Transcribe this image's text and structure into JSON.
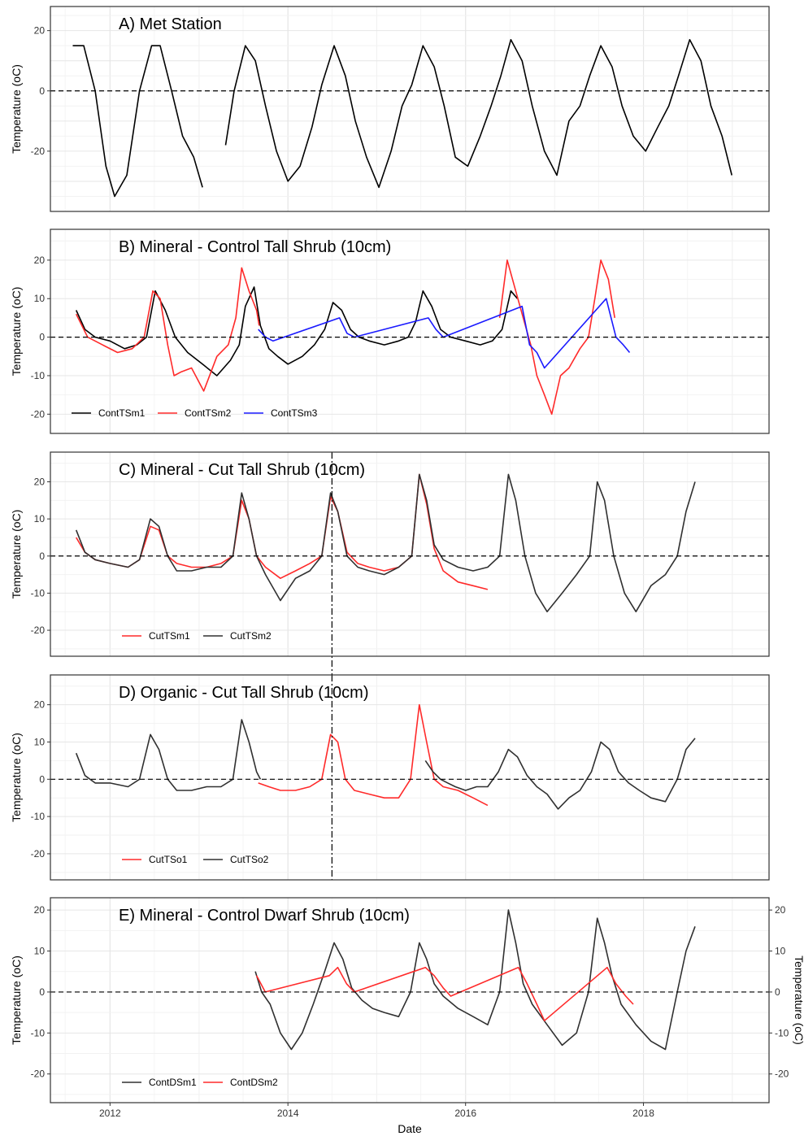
{
  "chart_data": [
    {
      "type": "line",
      "title": "A) Met Station",
      "ylabel": "Temperature (oC)",
      "ylim": [
        -40,
        28
      ],
      "yticks": [
        20,
        0,
        -20
      ],
      "xlim": [
        "2011-05-01",
        "2019-06-01"
      ],
      "reference_line": 0,
      "series": [
        {
          "name": "",
          "color": "#000000",
          "x": [
            "2011-08-01",
            "2011-09-15",
            "2011-11-01",
            "2011-12-15",
            "2012-01-20",
            "2012-03-10",
            "2012-05-01",
            "2012-06-20",
            "2012-07-25",
            "2012-09-10",
            "2012-10-25",
            "2012-12-10",
            "2013-01-15"
          ],
          "y": [
            15,
            15,
            0,
            -25,
            -35,
            -28,
            0,
            15,
            15,
            0,
            -15,
            -22,
            -32
          ]
        },
        {
          "name": "",
          "color": "#000000",
          "x": [
            "2013-04-20",
            "2013-05-25",
            "2013-07-10",
            "2013-08-20",
            "2013-10-01",
            "2013-11-15",
            "2014-01-01",
            "2014-02-20",
            "2014-04-10",
            "2014-05-20",
            "2014-07-10",
            "2014-08-25",
            "2014-10-05",
            "2014-11-20",
            "2015-01-10",
            "2015-03-01",
            "2015-04-15",
            "2015-05-25",
            "2015-07-10",
            "2015-08-25",
            "2015-10-05",
            "2015-11-20",
            "2016-01-10",
            "2016-03-01",
            "2016-04-15",
            "2016-05-25",
            "2016-07-05",
            "2016-08-20",
            "2016-10-01",
            "2016-11-20",
            "2017-01-10",
            "2017-03-01",
            "2017-04-15",
            "2017-05-25",
            "2017-07-10",
            "2017-08-25",
            "2017-10-05",
            "2017-11-20",
            "2018-01-10",
            "2018-03-01",
            "2018-04-15",
            "2018-05-25",
            "2018-07-10",
            "2018-08-25",
            "2018-10-05",
            "2018-11-20",
            "2018-12-30"
          ],
          "y": [
            -18,
            0,
            15,
            10,
            -5,
            -20,
            -30,
            -25,
            -12,
            2,
            15,
            5,
            -10,
            -22,
            -32,
            -20,
            -5,
            2,
            15,
            8,
            -5,
            -22,
            -25,
            -15,
            -5,
            5,
            17,
            10,
            -5,
            -20,
            -28,
            -10,
            -5,
            5,
            15,
            8,
            -5,
            -15,
            -20,
            -12,
            -5,
            5,
            17,
            10,
            -5,
            -15,
            -28
          ]
        }
      ]
    },
    {
      "type": "line",
      "title": "B) Mineral - Control Tall Shrub (10cm)",
      "ylabel": "Temperature (oC)",
      "ylim": [
        -25,
        28
      ],
      "yticks": [
        20,
        10,
        0,
        -10,
        -20
      ],
      "xlim": [
        "2011-05-01",
        "2019-06-01"
      ],
      "reference_line": 0,
      "legend_position": "bottom-left",
      "series": [
        {
          "name": "ContTSm1",
          "color": "#000000",
          "x": [
            "2011-08-15",
            "2011-09-20",
            "2011-11-01",
            "2012-01-01",
            "2012-03-01",
            "2012-04-20",
            "2012-05-30",
            "2012-07-05",
            "2012-08-15",
            "2012-09-25",
            "2012-11-15",
            "2013-01-15",
            "2013-03-15",
            "2013-05-10",
            "2013-06-15",
            "2013-07-10",
            "2013-08-15",
            "2013-09-10",
            "2013-10-15",
            "2013-11-20",
            "2014-01-01",
            "2014-03-01",
            "2014-04-20",
            "2014-06-01",
            "2014-07-05",
            "2014-08-10",
            "2014-09-15",
            "2014-10-20",
            "2014-12-01",
            "2015-02-01",
            "2015-04-01",
            "2015-05-10",
            "2015-06-10",
            "2015-07-10",
            "2015-08-15",
            "2015-09-20",
            "2015-11-01",
            "2016-01-01",
            "2016-03-01",
            "2016-04-20",
            "2016-05-30",
            "2016-07-05",
            "2016-08-01"
          ],
          "y": [
            7,
            2,
            0,
            -1,
            -3,
            -2,
            0,
            12,
            7,
            0,
            -4,
            -7,
            -10,
            -6,
            -2,
            8,
            13,
            3,
            -3,
            -5,
            -7,
            -5,
            -2,
            2,
            9,
            7,
            2,
            0,
            -1,
            -2,
            -1,
            0,
            4,
            12,
            8,
            2,
            0,
            -1,
            -2,
            -1,
            2,
            12,
            10
          ]
        },
        {
          "name": "ContTSm2",
          "color": "#ff2a2a",
          "x": [
            "2011-08-15",
            "2011-10-01",
            "2011-12-01",
            "2012-02-01",
            "2012-04-01",
            "2012-05-20",
            "2012-06-25",
            "2012-07-25",
            "2012-08-25",
            "2012-09-20",
            "2012-10-20",
            "2012-12-01",
            "2013-01-20",
            "2013-03-15",
            "2013-05-01",
            "2013-06-01",
            "2013-06-25",
            "2013-07-25",
            "2013-08-25",
            "2013-09-05"
          ],
          "y": [
            6,
            0,
            -2,
            -4,
            -3,
            0,
            12,
            10,
            -2,
            -10,
            -9,
            -8,
            -14,
            -5,
            -2,
            5,
            18,
            12,
            7,
            3
          ]
        },
        {
          "name": "ContTSm2",
          "color": "#ff2a2a",
          "x": [
            "2016-05-20",
            "2016-06-20",
            "2016-07-25",
            "2016-08-25",
            "2016-09-25",
            "2016-10-20",
            "2016-11-20",
            "2016-12-20",
            "2017-01-25",
            "2017-03-01",
            "2017-04-15",
            "2017-05-20",
            "2017-06-15",
            "2017-07-10",
            "2017-08-10",
            "2017-09-05"
          ],
          "y": [
            5,
            20,
            12,
            5,
            -2,
            -10,
            -15,
            -20,
            -10,
            -8,
            -3,
            0,
            10,
            20,
            15,
            5
          ]
        },
        {
          "name": "ContTSm3",
          "color": "#1a1aff",
          "x": [
            "2013-09-01",
            "2013-10-01",
            "2013-11-01",
            "2014-08-01",
            "2014-09-01",
            "2014-10-01",
            "2015-08-01",
            "2015-09-01",
            "2015-10-01",
            "2016-08-20",
            "2016-09-20",
            "2016-10-20",
            "2016-11-20",
            "2017-08-01",
            "2017-09-10",
            "2017-10-10",
            "2017-11-05"
          ],
          "y": [
            2,
            0,
            -1,
            5,
            1,
            0,
            5,
            2,
            0,
            8,
            -2,
            -4,
            -8,
            10,
            0,
            -2,
            -4
          ]
        }
      ]
    },
    {
      "type": "line",
      "title": "C) Mineral - Cut Tall Shrub (10cm)",
      "ylabel": "Temperature (oC)",
      "ylim": [
        -27,
        28
      ],
      "yticks": [
        20,
        10,
        0,
        -10,
        -20
      ],
      "xlim": [
        "2011-05-01",
        "2019-06-01"
      ],
      "reference_line": 0,
      "vline": "2014-07-01",
      "legend_position": "bottom-left",
      "series": [
        {
          "name": "CutTSm1",
          "color": "#ff2a2a",
          "x": [
            "2011-08-15",
            "2011-09-20",
            "2011-11-01",
            "2012-01-01",
            "2012-03-15",
            "2012-05-01",
            "2012-06-15",
            "2012-07-20",
            "2012-08-25",
            "2012-10-01",
            "2012-12-01",
            "2013-02-01",
            "2013-04-01",
            "2013-05-20",
            "2013-06-25",
            "2013-07-25",
            "2013-08-25",
            "2013-10-01",
            "2013-12-01",
            "2014-02-01",
            "2014-04-01",
            "2014-05-20",
            "2014-06-25",
            "2014-07-25",
            "2014-09-01",
            "2014-10-15",
            "2014-12-01",
            "2015-02-01",
            "2015-04-01",
            "2015-05-25",
            "2015-06-25",
            "2015-07-25",
            "2015-08-25",
            "2015-10-01",
            "2015-12-01",
            "2016-02-01",
            "2016-04-01"
          ],
          "y": [
            5,
            1,
            -1,
            -2,
            -3,
            -1,
            8,
            7,
            0,
            -2,
            -3,
            -3,
            -2,
            0,
            15,
            10,
            0,
            -3,
            -6,
            -4,
            -2,
            0,
            16,
            12,
            1,
            -2,
            -3,
            -4,
            -3,
            0,
            22,
            14,
            2,
            -4,
            -7,
            -8,
            -9
          ]
        },
        {
          "name": "CutTSm2",
          "color": "#303030",
          "x": [
            "2011-08-15",
            "2011-09-20",
            "2011-11-01",
            "2012-01-01",
            "2012-03-15",
            "2012-05-01",
            "2012-06-15",
            "2012-07-20",
            "2012-08-25",
            "2012-10-01",
            "2012-12-01",
            "2013-02-01",
            "2013-04-01",
            "2013-05-20",
            "2013-06-25",
            "2013-07-25",
            "2013-08-25",
            "2013-10-01",
            "2013-12-01",
            "2014-02-01",
            "2014-04-01",
            "2014-05-20",
            "2014-06-25",
            "2014-07-25",
            "2014-09-01",
            "2014-10-15",
            "2014-12-01",
            "2015-02-01",
            "2015-04-01",
            "2015-05-25",
            "2015-06-25",
            "2015-07-25",
            "2015-08-25",
            "2015-10-01",
            "2015-12-01",
            "2016-02-01",
            "2016-04-01",
            "2016-05-20",
            "2016-06-25",
            "2016-07-25",
            "2016-09-01",
            "2016-10-15",
            "2016-12-01",
            "2017-02-01",
            "2017-04-01",
            "2017-05-25",
            "2017-06-25",
            "2017-07-25",
            "2017-09-01",
            "2017-10-15",
            "2017-12-01",
            "2018-02-01",
            "2018-04-01",
            "2018-05-20",
            "2018-06-25",
            "2018-08-01"
          ],
          "y": [
            7,
            1,
            -1,
            -2,
            -3,
            -1,
            10,
            8,
            0,
            -4,
            -4,
            -3,
            -3,
            0,
            17,
            10,
            0,
            -5,
            -12,
            -6,
            -4,
            0,
            17,
            12,
            0,
            -3,
            -4,
            -5,
            -3,
            0,
            22,
            15,
            3,
            -1,
            -3,
            -4,
            -3,
            0,
            22,
            15,
            0,
            -10,
            -15,
            -10,
            -5,
            0,
            20,
            15,
            0,
            -10,
            -15,
            -8,
            -5,
            0,
            12,
            20
          ]
        }
      ]
    },
    {
      "type": "line",
      "title": "D) Organic - Cut Tall Shrub (10cm)",
      "ylabel": "Temperature (oC)",
      "ylim": [
        -27,
        28
      ],
      "yticks": [
        20,
        10,
        0,
        -10,
        -20
      ],
      "xlim": [
        "2011-05-01",
        "2019-06-01"
      ],
      "reference_line": 0,
      "vline": "2014-07-01",
      "legend_position": "bottom-left",
      "series": [
        {
          "name": "CutTSo1",
          "color": "#ff2a2a",
          "x": [
            "2013-09-01",
            "2013-10-15",
            "2013-12-01",
            "2014-02-01",
            "2014-04-01",
            "2014-05-20",
            "2014-06-25",
            "2014-07-25",
            "2014-08-25",
            "2014-10-01",
            "2014-12-01",
            "2015-02-01",
            "2015-04-01",
            "2015-05-20",
            "2015-06-25",
            "2015-07-25",
            "2015-08-25",
            "2015-10-01",
            "2015-12-01",
            "2016-02-01",
            "2016-04-01"
          ],
          "y": [
            -1,
            -2,
            -3,
            -3,
            -2,
            0,
            12,
            10,
            0,
            -3,
            -4,
            -5,
            -5,
            0,
            20,
            10,
            0,
            -2,
            -3,
            -5,
            -7
          ]
        },
        {
          "name": "CutTSo2",
          "color": "#303030",
          "x": [
            "2011-08-15",
            "2011-09-20",
            "2011-11-01",
            "2012-01-01",
            "2012-03-15",
            "2012-05-01",
            "2012-06-15",
            "2012-07-20",
            "2012-08-25",
            "2012-10-01",
            "2012-12-01",
            "2013-02-01",
            "2013-04-01",
            "2013-05-20",
            "2013-06-25",
            "2013-07-25",
            "2013-08-25",
            "2013-09-10"
          ],
          "y": [
            7,
            1,
            -1,
            -1,
            -2,
            0,
            12,
            8,
            0,
            -3,
            -3,
            -2,
            -2,
            0,
            16,
            10,
            2,
            0
          ]
        },
        {
          "name": "CutTSo2",
          "color": "#303030",
          "x": [
            "2015-07-20",
            "2015-08-20",
            "2015-09-20",
            "2015-10-20",
            "2015-11-20",
            "2016-01-01",
            "2016-02-15",
            "2016-04-01",
            "2016-05-15",
            "2016-06-25",
            "2016-08-01",
            "2016-09-10",
            "2016-10-20",
            "2016-12-01",
            "2017-01-15",
            "2017-03-01",
            "2017-04-15",
            "2017-06-01",
            "2017-07-10",
            "2017-08-15",
            "2017-09-20",
            "2017-11-01",
            "2017-12-15",
            "2018-02-01",
            "2018-04-01",
            "2018-05-20",
            "2018-06-25",
            "2018-08-01"
          ],
          "y": [
            5,
            2,
            0,
            -1,
            -2,
            -3,
            -2,
            -2,
            2,
            8,
            6,
            1,
            -2,
            -4,
            -8,
            -5,
            -3,
            2,
            10,
            8,
            2,
            -1,
            -3,
            -5,
            -6,
            0,
            8,
            11
          ]
        }
      ]
    },
    {
      "type": "line",
      "title": "E) Mineral - Control Dwarf Shrub (10cm)",
      "ylabel": "Temperature (oC)",
      "ylabel_right": "Temperature (oC)",
      "xlabel": "Date",
      "ylim": [
        -27,
        23
      ],
      "yticks": [
        20,
        10,
        0,
        -10,
        -20
      ],
      "xticks": [
        "2012",
        "2014",
        "2016",
        "2018"
      ],
      "xlim": [
        "2011-05-01",
        "2019-06-01"
      ],
      "reference_line": 0,
      "legend_position": "bottom-left",
      "series": [
        {
          "name": "ContDSm1",
          "color": "#303030",
          "x": [
            "2013-08-20",
            "2013-09-15",
            "2013-10-20",
            "2013-12-01",
            "2014-01-15",
            "2014-03-01",
            "2014-04-15",
            "2014-06-01",
            "2014-07-10",
            "2014-08-15",
            "2014-09-20",
            "2014-11-01",
            "2014-12-15",
            "2015-02-01",
            "2015-04-01",
            "2015-05-20",
            "2015-06-25",
            "2015-07-25",
            "2015-08-25",
            "2015-10-01",
            "2015-12-01",
            "2016-02-01",
            "2016-04-01",
            "2016-05-20",
            "2016-06-25",
            "2016-07-25",
            "2016-08-25",
            "2016-10-01",
            "2016-12-01",
            "2017-02-01",
            "2017-04-01",
            "2017-05-20",
            "2017-06-25",
            "2017-07-25",
            "2017-08-25",
            "2017-10-01",
            "2017-12-01",
            "2018-02-01",
            "2018-04-01",
            "2018-05-20",
            "2018-06-25",
            "2018-08-01"
          ],
          "y": [
            5,
            0,
            -3,
            -10,
            -14,
            -10,
            -3,
            5,
            12,
            8,
            1,
            -2,
            -4,
            -5,
            -6,
            0,
            12,
            8,
            2,
            -1,
            -4,
            -6,
            -8,
            0,
            20,
            12,
            2,
            -3,
            -8,
            -13,
            -10,
            0,
            18,
            12,
            4,
            -3,
            -8,
            -12,
            -14,
            0,
            10,
            16
          ]
        },
        {
          "name": "ContDSm2",
          "color": "#ff2a2a",
          "x": [
            "2013-08-25",
            "2013-09-30",
            "2014-06-20",
            "2014-07-25",
            "2014-08-30",
            "2014-10-01",
            "2015-07-20",
            "2015-08-25",
            "2015-10-01",
            "2015-11-01",
            "2016-08-05",
            "2016-09-10",
            "2016-10-20",
            "2016-11-20",
            "2017-08-05",
            "2017-09-10",
            "2017-10-20",
            "2017-11-20"
          ],
          "y": [
            4,
            0,
            4,
            6,
            2,
            0,
            6,
            4,
            1,
            -1,
            6,
            2,
            -3,
            -7,
            6,
            2,
            -1,
            -3
          ]
        }
      ]
    }
  ]
}
